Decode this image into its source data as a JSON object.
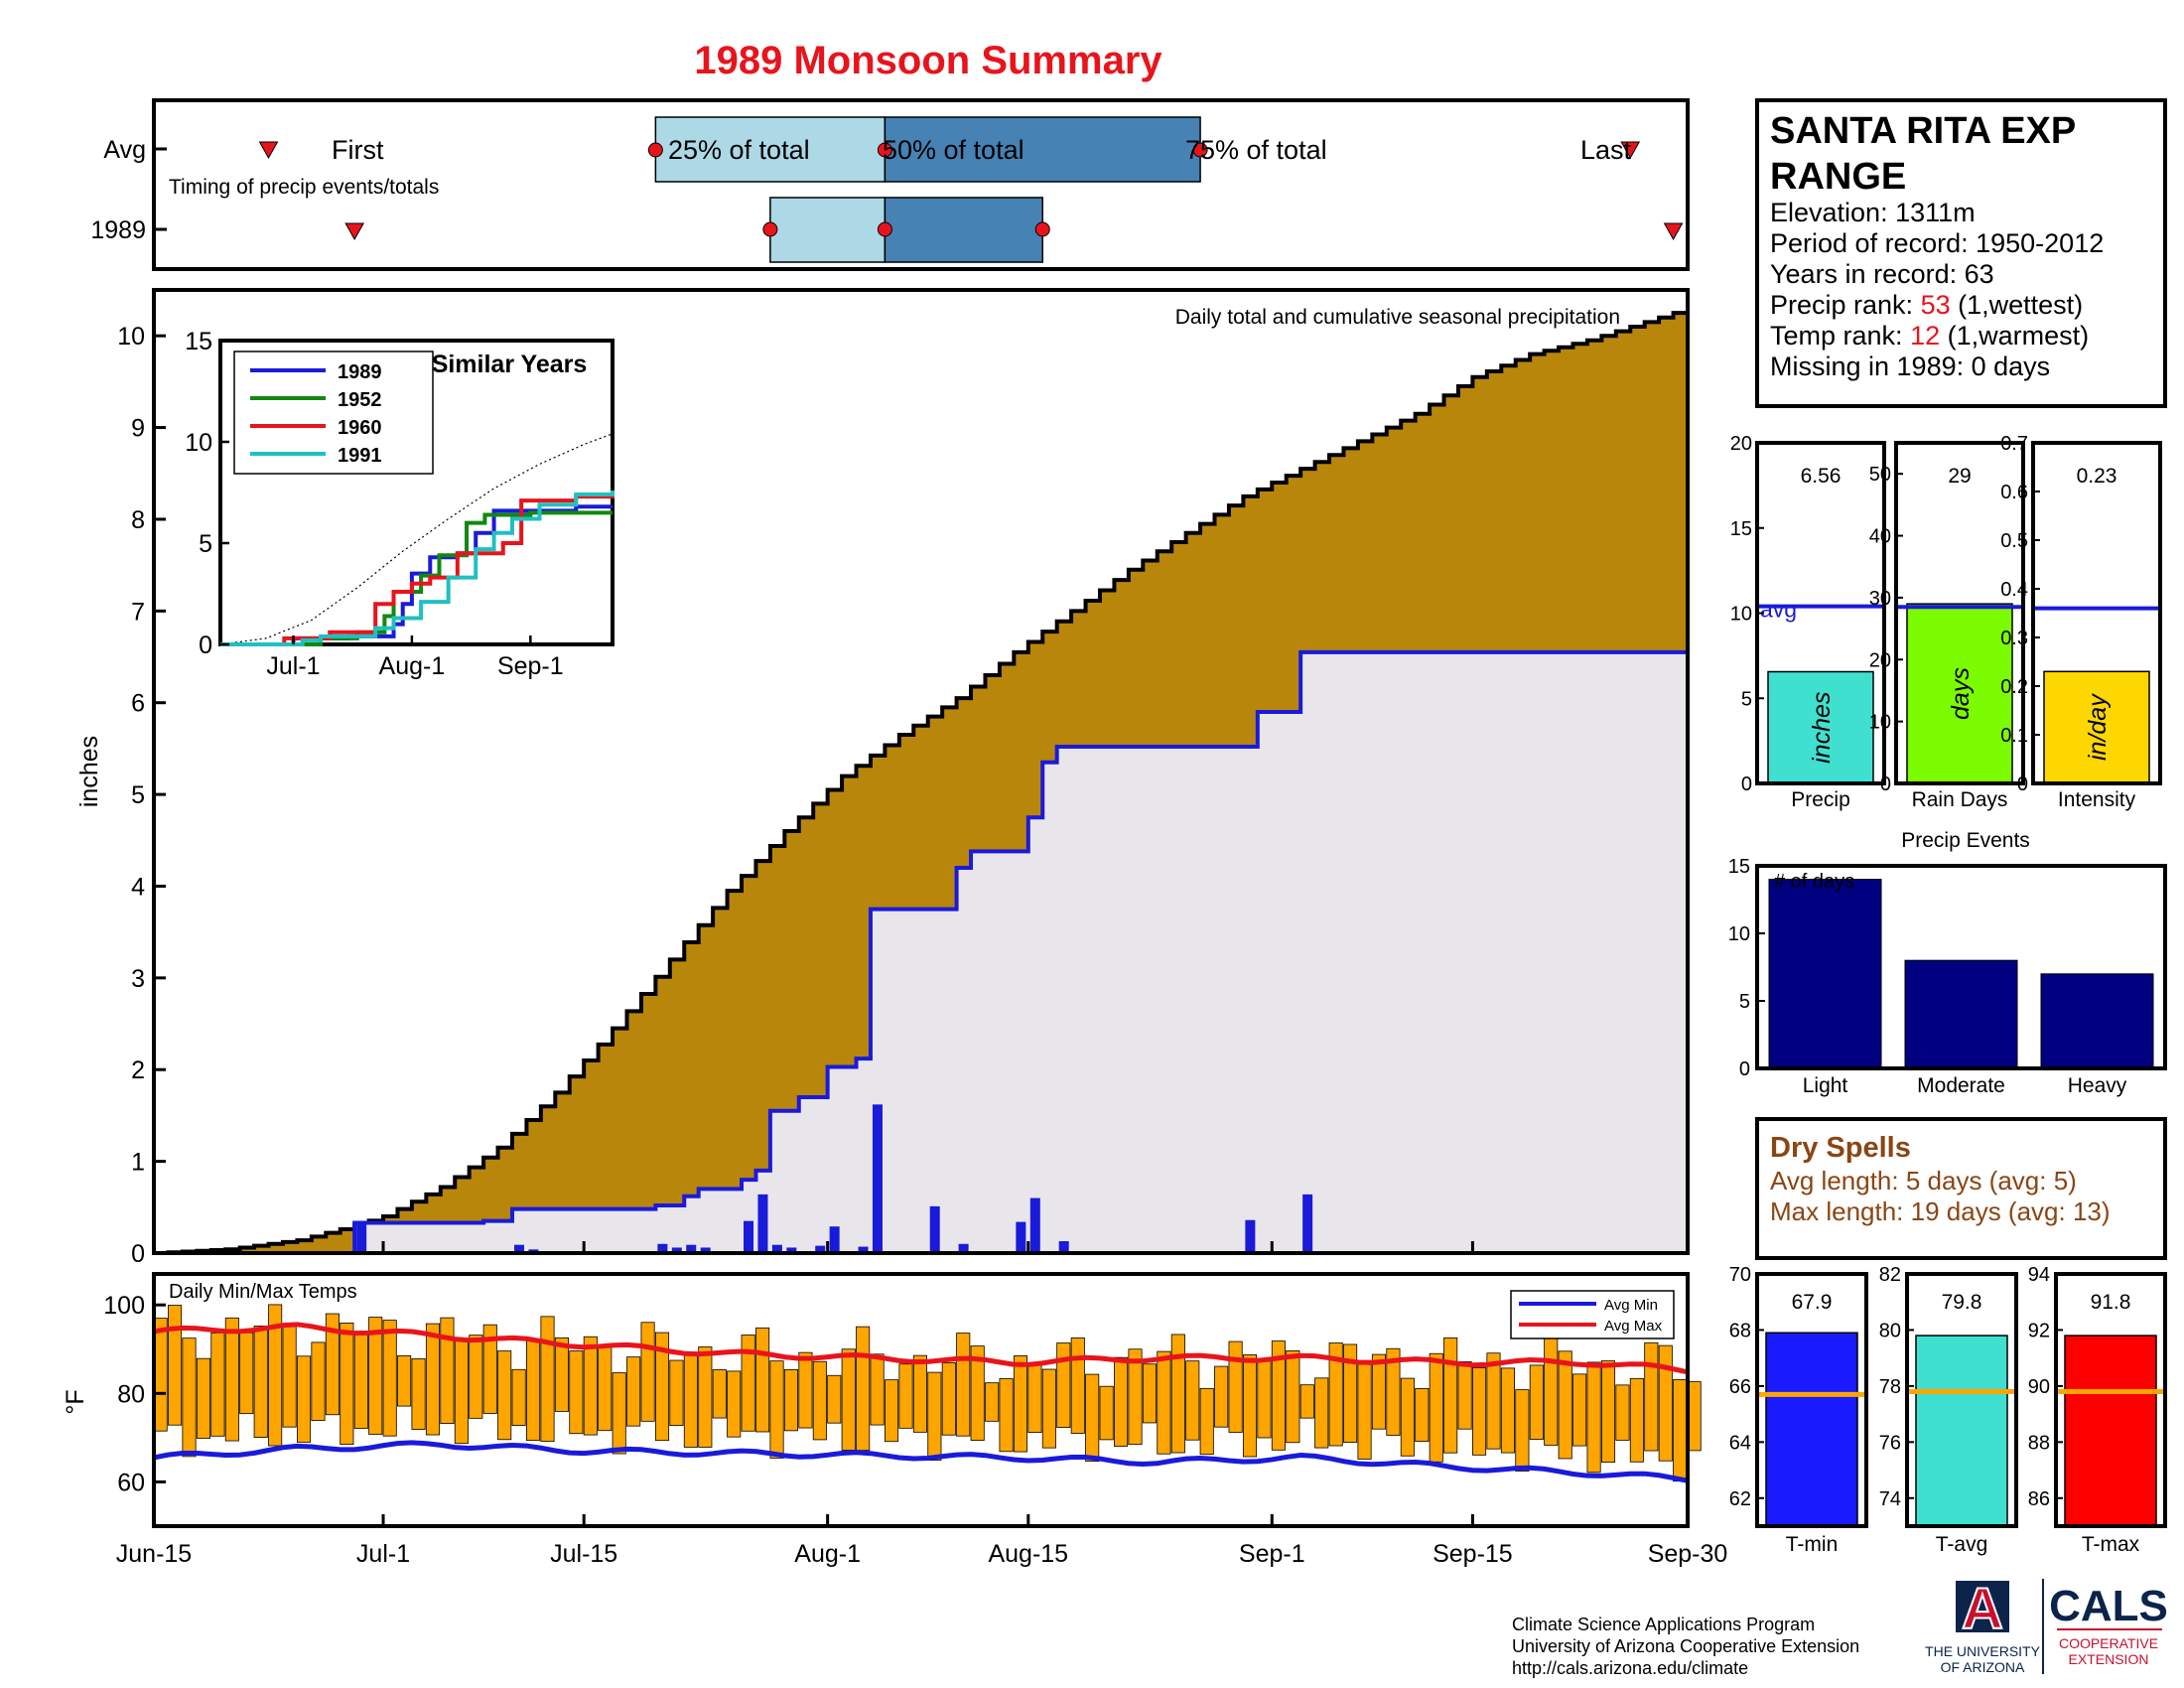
{
  "title": "1989 Monsoon Summary",
  "colors": {
    "title": "#e8141c",
    "avg_fill": "#b8860b",
    "year_fill": "#e8e6ea",
    "year_line": "#1a1adb",
    "bar_blue": "#1a1adb",
    "q_light": "#add8e6",
    "q_dark": "#4682b4",
    "marker": "#e8141c",
    "temp_bar": "#ffa500",
    "avg_min": "#1a1adb",
    "avg_max": "#e8141c",
    "dry_text": "#8b4513",
    "rank_red": "#e8141c"
  },
  "timing": {
    "row_avg": "Avg",
    "row_year": "1989",
    "first": "First",
    "last": "Last",
    "q25": "25% of total",
    "q50": "50% of total",
    "q75": "75% of total",
    "caption": "Timing of precip events/totals"
  },
  "station": {
    "name_line1": "SANTA RITA EXP",
    "name_line2": "RANGE",
    "elevation": "Elevation: 1311m",
    "period": "Period of record: 1950-2012",
    "years": "Years in record: 63",
    "precip_rank_label": "Precip rank:",
    "precip_rank": "53",
    "precip_rank_note": "(1,wettest)",
    "temp_rank_label": "Temp rank:",
    "temp_rank": "12",
    "temp_rank_note": "(1,warmest)",
    "missing": "Missing in 1989: 0 days"
  },
  "dry_spells": {
    "title": "Dry Spells",
    "avg": "Avg length: 5 days (avg: 5)",
    "max": "Max length: 19 days (avg: 13)"
  },
  "footer": {
    "line1": "Climate Science Applications Program",
    "line2": "University of Arizona Cooperative Extension",
    "line3": "http://cals.arizona.edu/climate",
    "ua_logo": "A",
    "ua_name1": "THE UNIVERSITY",
    "ua_name2": "OF ARIZONA",
    "cals": "CALS",
    "cals_sub1": "COOPERATIVE",
    "cals_sub2": "EXTENSION"
  },
  "chart_data": [
    {
      "id": "timing",
      "type": "bar",
      "x_ticks": [
        "Jun-15",
        "Jul-1",
        "Jul-15",
        "Aug-1",
        "Aug-15",
        "Sep-1",
        "Sep-15",
        "Sep-30"
      ],
      "avg": {
        "first": "Jun-23",
        "q25": "Jul-20",
        "q50": "Aug-5",
        "q75": "Aug-27",
        "last": "Sep-26"
      },
      "year": {
        "first": "Jun-29",
        "q25": "Jul-28",
        "q50": "Aug-5",
        "q75": "Aug-16",
        "last": "Sep-29"
      }
    },
    {
      "id": "main",
      "type": "area",
      "title": "Daily total and cumulative seasonal precipitation",
      "ylabel": "inches",
      "ylim": [
        0,
        10.5
      ],
      "yticks": [
        0,
        1,
        2,
        3,
        4,
        5,
        6,
        7,
        8,
        9,
        10
      ],
      "x_ticks": [
        "Jun-15",
        "Jul-1",
        "Jul-15",
        "Aug-1",
        "Aug-15",
        "Sep-1",
        "Sep-15",
        "Sep-30"
      ],
      "avg_cumulative": {
        "days": [
          0,
          5,
          10,
          13,
          16,
          20,
          24,
          28,
          32,
          36,
          40,
          44,
          48,
          52,
          56,
          60,
          64,
          68,
          72,
          76,
          80,
          84,
          88,
          92,
          96,
          100,
          104,
          108
        ],
        "values": [
          0,
          0.04,
          0.14,
          0.26,
          0.4,
          0.72,
          1.15,
          1.75,
          2.45,
          3.2,
          3.95,
          4.6,
          5.2,
          5.65,
          6.05,
          6.55,
          7.0,
          7.45,
          7.85,
          8.25,
          8.55,
          8.85,
          9.15,
          9.55,
          9.8,
          9.95,
          10.15,
          10.35
        ]
      },
      "year_cumulative": {
        "steps": [
          [
            14,
            0.33
          ],
          [
            23,
            0.35
          ],
          [
            25,
            0.48
          ],
          [
            35,
            0.52
          ],
          [
            37,
            0.62
          ],
          [
            38,
            0.7
          ],
          [
            41,
            0.8
          ],
          [
            42,
            0.9
          ],
          [
            43,
            1.55
          ],
          [
            45,
            1.7
          ],
          [
            47,
            2.03
          ],
          [
            49,
            2.12
          ],
          [
            50,
            3.75
          ],
          [
            56,
            4.2
          ],
          [
            57,
            4.38
          ],
          [
            61,
            4.75
          ],
          [
            62,
            5.35
          ],
          [
            63,
            5.52
          ],
          [
            77,
            5.9
          ],
          [
            80,
            6.55
          ],
          [
            108,
            6.57
          ]
        ]
      },
      "daily_bars": {
        "days": [
          14,
          25,
          26,
          35,
          36,
          37,
          38,
          41,
          42,
          43,
          44,
          46,
          47,
          49,
          50,
          54,
          56,
          60,
          61,
          63,
          76,
          80
        ],
        "values": [
          0.33,
          0.09,
          0.04,
          0.1,
          0.06,
          0.09,
          0.06,
          0.35,
          0.64,
          0.09,
          0.06,
          0.08,
          0.29,
          0.07,
          1.62,
          0.51,
          0.1,
          0.34,
          0.6,
          0.13,
          0.36,
          0.64
        ]
      }
    },
    {
      "id": "similar_years",
      "type": "line",
      "title": "Similar Years",
      "ylim": [
        0,
        15
      ],
      "yticks": [
        0,
        5,
        10,
        15
      ],
      "x_ticks": [
        "Jul-1",
        "Aug-1",
        "Sep-1"
      ],
      "series": [
        {
          "name": "1989",
          "color": "#1a1adb",
          "steps": [
            [
              0,
              0
            ],
            [
              16,
              0.3
            ],
            [
              28,
              0.4
            ],
            [
              38,
              1.0
            ],
            [
              40,
              2.0
            ],
            [
              42,
              3.5
            ],
            [
              46,
              4.3
            ],
            [
              52,
              4.5
            ],
            [
              56,
              5.5
            ],
            [
              60,
              6.6
            ],
            [
              78,
              6.8
            ],
            [
              86,
              6.8
            ]
          ]
        },
        {
          "name": "1952",
          "color": "#118811",
          "steps": [
            [
              0,
              0
            ],
            [
              22,
              0.3
            ],
            [
              30,
              0.6
            ],
            [
              36,
              1.4
            ],
            [
              38,
              2.6
            ],
            [
              44,
              3.4
            ],
            [
              48,
              4.4
            ],
            [
              54,
              6.0
            ],
            [
              58,
              6.4
            ],
            [
              68,
              6.5
            ],
            [
              86,
              6.5
            ]
          ]
        },
        {
          "name": "1960",
          "color": "#e8141c",
          "steps": [
            [
              0,
              0
            ],
            [
              14,
              0.3
            ],
            [
              24,
              0.6
            ],
            [
              34,
              2.0
            ],
            [
              38,
              2.6
            ],
            [
              42,
              3.0
            ],
            [
              46,
              3.3
            ],
            [
              52,
              4.5
            ],
            [
              62,
              5.0
            ],
            [
              66,
              7.1
            ],
            [
              78,
              7.3
            ],
            [
              86,
              7.4
            ]
          ]
        },
        {
          "name": "1991",
          "color": "#20c0c0",
          "steps": [
            [
              0,
              0
            ],
            [
              18,
              0.2
            ],
            [
              22,
              0.4
            ],
            [
              34,
              0.8
            ],
            [
              38,
              1.3
            ],
            [
              44,
              2.1
            ],
            [
              50,
              3.3
            ],
            [
              56,
              4.7
            ],
            [
              60,
              5.5
            ],
            [
              64,
              6.2
            ],
            [
              70,
              6.9
            ],
            [
              78,
              7.4
            ],
            [
              86,
              7.6
            ]
          ]
        }
      ],
      "avg_line": {
        "days": [
          0,
          10,
          20,
          30,
          40,
          50,
          60,
          70,
          80,
          86
        ],
        "values": [
          0,
          0.3,
          1.2,
          2.8,
          4.6,
          6.2,
          7.7,
          8.9,
          9.9,
          10.4
        ]
      }
    },
    {
      "id": "temps",
      "type": "bar",
      "title": "Daily Min/Max Temps",
      "ylabel": "°F",
      "ylim": [
        50,
        107
      ],
      "yticks": [
        60,
        80,
        100
      ],
      "legend": [
        "Avg Min",
        "Avg Max"
      ],
      "legend_position": "top-right",
      "avg_min": {
        "days": [
          0,
          10,
          20,
          30,
          40,
          50,
          60,
          70,
          80,
          90,
          100,
          108
        ],
        "values": [
          65.5,
          67.5,
          68.5,
          67,
          66.5,
          66,
          65.5,
          64.5,
          65.5,
          63.5,
          62,
          60.5
        ]
      },
      "avg_max": {
        "days": [
          0,
          10,
          20,
          30,
          40,
          50,
          60,
          70,
          80,
          90,
          100,
          108
        ],
        "values": [
          94,
          95,
          93,
          91,
          89,
          88,
          87,
          88,
          88,
          87,
          87,
          85
        ]
      }
    },
    {
      "id": "precip_summary",
      "type": "bar",
      "panels": [
        {
          "label": "Precip",
          "unit": "inches",
          "value": 6.56,
          "value_text": "6.56",
          "avg": 10.4,
          "avg_label": "avg",
          "ylim": [
            0,
            20
          ],
          "yticks": [
            0,
            5,
            10,
            15,
            20
          ],
          "color": "#40e0d0"
        },
        {
          "label": "Rain Days",
          "unit": "days",
          "value": 29,
          "value_text": "29",
          "avg": 28.5,
          "ylim": [
            0,
            55
          ],
          "yticks": [
            0,
            10,
            20,
            30,
            40,
            50
          ],
          "color": "#7cfc00"
        },
        {
          "label": "Intensity",
          "unit": "in/day",
          "value": 0.23,
          "value_text": "0.23",
          "avg": 0.36,
          "ylim": [
            0,
            0.7
          ],
          "yticks": [
            0,
            0.1,
            0.2,
            0.3,
            0.4,
            0.5,
            0.6,
            0.7
          ],
          "color": "#ffd700"
        }
      ]
    },
    {
      "id": "precip_events",
      "type": "bar",
      "title": "Precip Events",
      "ylabel": "# of days",
      "categories": [
        "Light",
        "Moderate",
        "Heavy"
      ],
      "values": [
        14,
        8,
        7
      ],
      "ylim": [
        0,
        15
      ],
      "yticks": [
        0,
        5,
        10,
        15
      ],
      "color": "#000080"
    },
    {
      "id": "temp_summary",
      "type": "bar",
      "panels": [
        {
          "label": "T-min",
          "value": 67.9,
          "value_text": "67.9",
          "avg": 65.7,
          "ylim": [
            61,
            70
          ],
          "yticks": [
            62,
            64,
            66,
            68,
            70
          ],
          "color": "#1a1aff"
        },
        {
          "label": "T-avg",
          "value": 79.8,
          "value_text": "79.8",
          "avg": 77.8,
          "ylim": [
            73,
            82
          ],
          "yticks": [
            74,
            76,
            78,
            80,
            82
          ],
          "color": "#40e0d0"
        },
        {
          "label": "T-max",
          "value": 91.8,
          "value_text": "91.8",
          "avg": 89.8,
          "ylim": [
            85,
            94
          ],
          "yticks": [
            86,
            88,
            90,
            92,
            94
          ],
          "color": "#ff0000"
        }
      ]
    }
  ]
}
